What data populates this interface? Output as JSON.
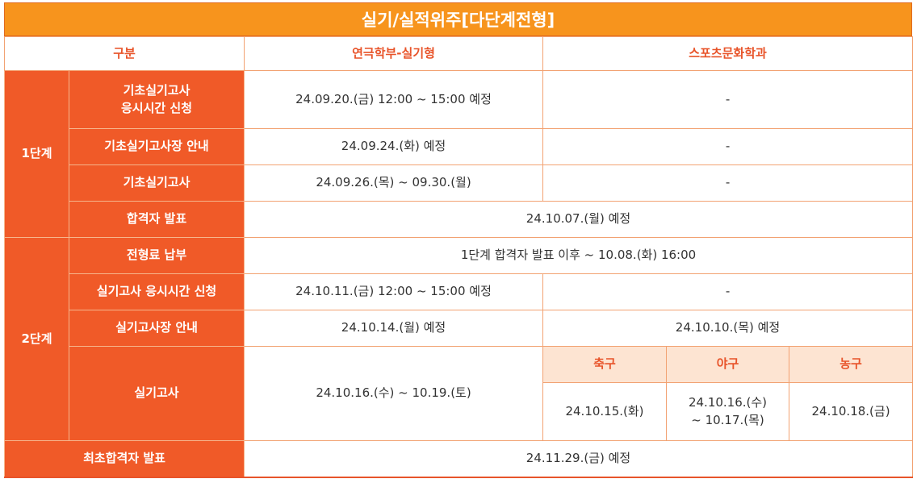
{
  "title": "실기/실적위주[다단계전형]",
  "header": {
    "category": "구분",
    "col_theater": "연극학부-실기형",
    "col_sports": "스포츠문화학과"
  },
  "stage1": {
    "label": "1단계",
    "rows": [
      {
        "item": "기초실기고사\n응시시간 신청",
        "theater": "24.09.20.(금) 12:00 ~ 15:00 예정",
        "sports": "-"
      },
      {
        "item": "기초실기고사장 안내",
        "theater": "24.09.24.(화) 예정",
        "sports": "-"
      },
      {
        "item": "기초실기고사",
        "theater": "24.09.26.(목) ~ 09.30.(월)",
        "sports": "-"
      },
      {
        "item": "합격자 발표",
        "both": "24.10.07.(월) 예정"
      }
    ]
  },
  "stage2": {
    "label": "2단계",
    "fee": {
      "item": "전형료 납부",
      "both": "1단계 합격자 발표 이후 ~ 10.08.(화) 16:00"
    },
    "apply": {
      "item": "실기고사 응시시간 신청",
      "theater": "24.10.11.(금) 12:00 ~ 15:00 예정",
      "sports": "-"
    },
    "venue": {
      "item": "실기고사장 안내",
      "theater": "24.10.14.(월) 예정",
      "sports": "24.10.10.(목) 예정"
    },
    "exam": {
      "item": "실기고사",
      "theater": "24.10.16.(수) ~ 10.19.(토)",
      "sports": [
        {
          "name": "축구",
          "date": "24.10.15.(화)"
        },
        {
          "name": "야구",
          "date": "24.10.16.(수)\n~ 10.17.(목)"
        },
        {
          "name": "농구",
          "date": "24.10.18.(금)"
        }
      ]
    }
  },
  "final": {
    "item": "최초합격자 발표",
    "both": "24.11.29.(금) 예정"
  },
  "colors": {
    "title_bg": "#f7941d",
    "row_header_bg": "#f05a28",
    "header_text": "#e8542a",
    "sub_header_bg": "#fde4d2",
    "border": "#f2a272"
  }
}
